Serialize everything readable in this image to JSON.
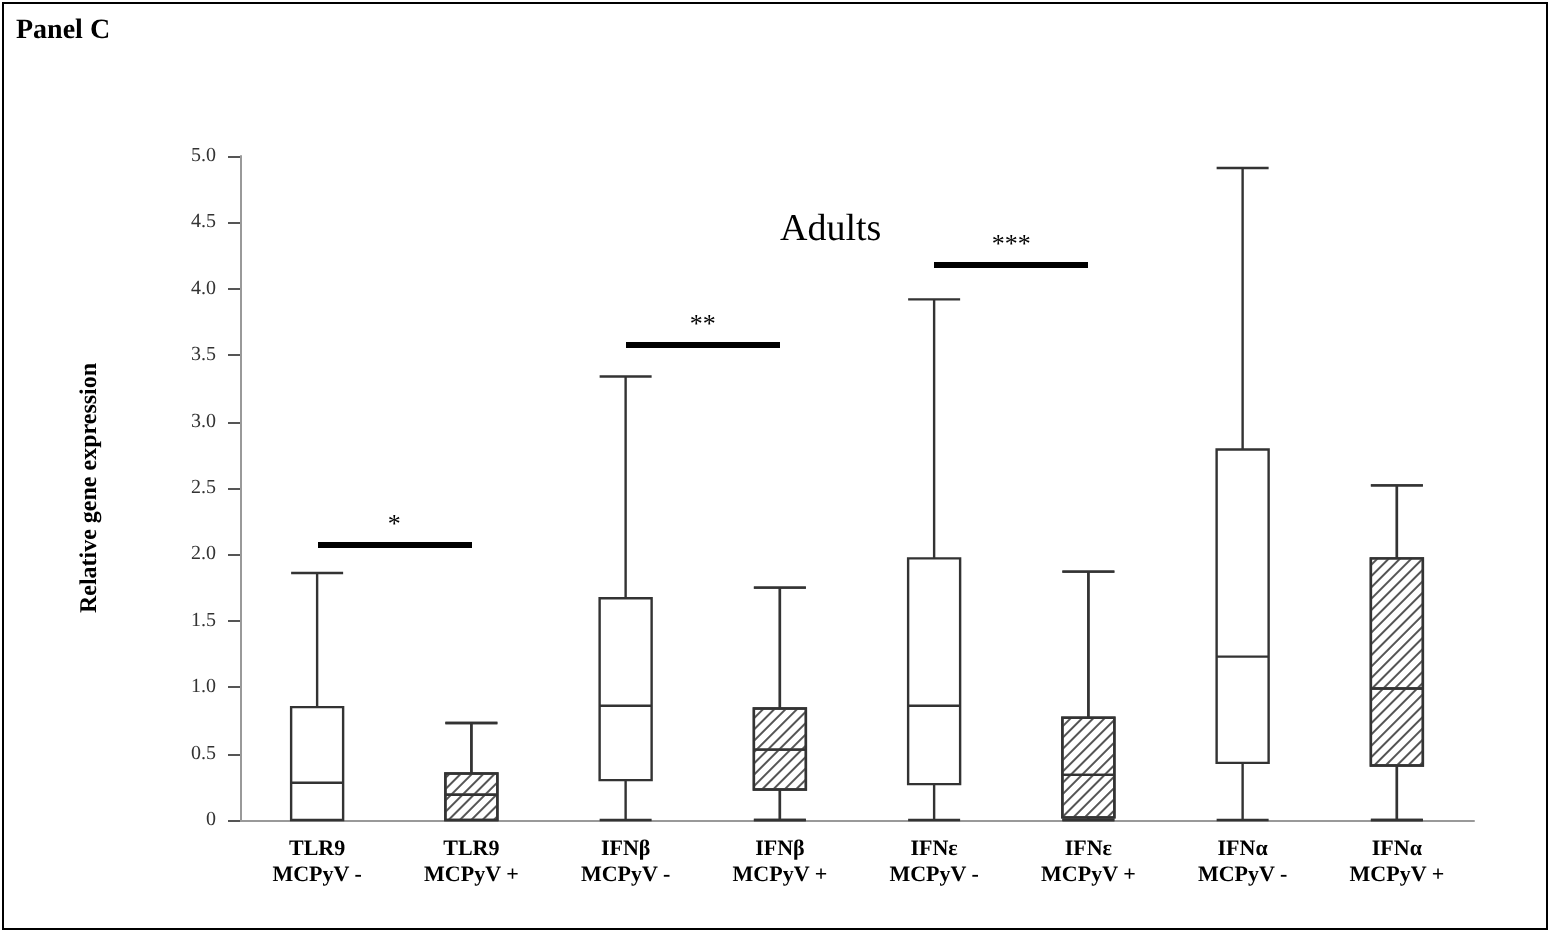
{
  "chart_data": {
    "type": "box",
    "title": "Panel C",
    "subtitle": "Adults",
    "ylabel": "Relative gene expression",
    "categories": [
      "TLR9\nMCPyV -",
      "TLR9\nMCPyV +",
      "IFNβ\nMCPyV -",
      "IFNβ\nMCPyV +",
      "IFNε\nMCPyV -",
      "IFNε\nMCPyV +",
      "IFNα\nMCPyV -",
      "IFNα\nMCPyV +"
    ],
    "boxes": [
      {
        "low": 0,
        "q1": 0,
        "median": 0.28,
        "q3": 0.85,
        "high": 1.86
      },
      {
        "low": 0,
        "q1": 0,
        "median": 0.19,
        "q3": 0.35,
        "high": 0.73
      },
      {
        "low": 0,
        "q1": 0.3,
        "median": 0.86,
        "q3": 1.67,
        "high": 3.34
      },
      {
        "low": 0,
        "q1": 0.23,
        "median": 0.53,
        "q3": 0.84,
        "high": 1.75
      },
      {
        "low": 0,
        "q1": 0.27,
        "median": 0.86,
        "q3": 1.97,
        "high": 3.92
      },
      {
        "low": 0,
        "q1": 0.02,
        "median": 0.34,
        "q3": 0.77,
        "high": 1.87
      },
      {
        "low": 0,
        "q1": 0.43,
        "median": 1.23,
        "q3": 2.79,
        "high": 4.91
      },
      {
        "low": 0,
        "q1": 0.41,
        "median": 0.99,
        "q3": 1.97,
        "high": 2.52
      }
    ],
    "color": "#333333",
    "ylim": [
      0,
      5
    ],
    "yticks": [
      0,
      0.5,
      {
        "value": 1,
        "label": "1.0"
      },
      1.5,
      {
        "value": 2,
        "label": "2.0"
      },
      2.5,
      {
        "value": 3,
        "label": "3.0"
      },
      3.5,
      {
        "value": 4,
        "label": "4.0"
      },
      4.5,
      {
        "value": 5,
        "label": "5.0"
      }
    ],
    "grid": false,
    "annotations": [
      "*",
      "**",
      "***"
    ]
  }
}
